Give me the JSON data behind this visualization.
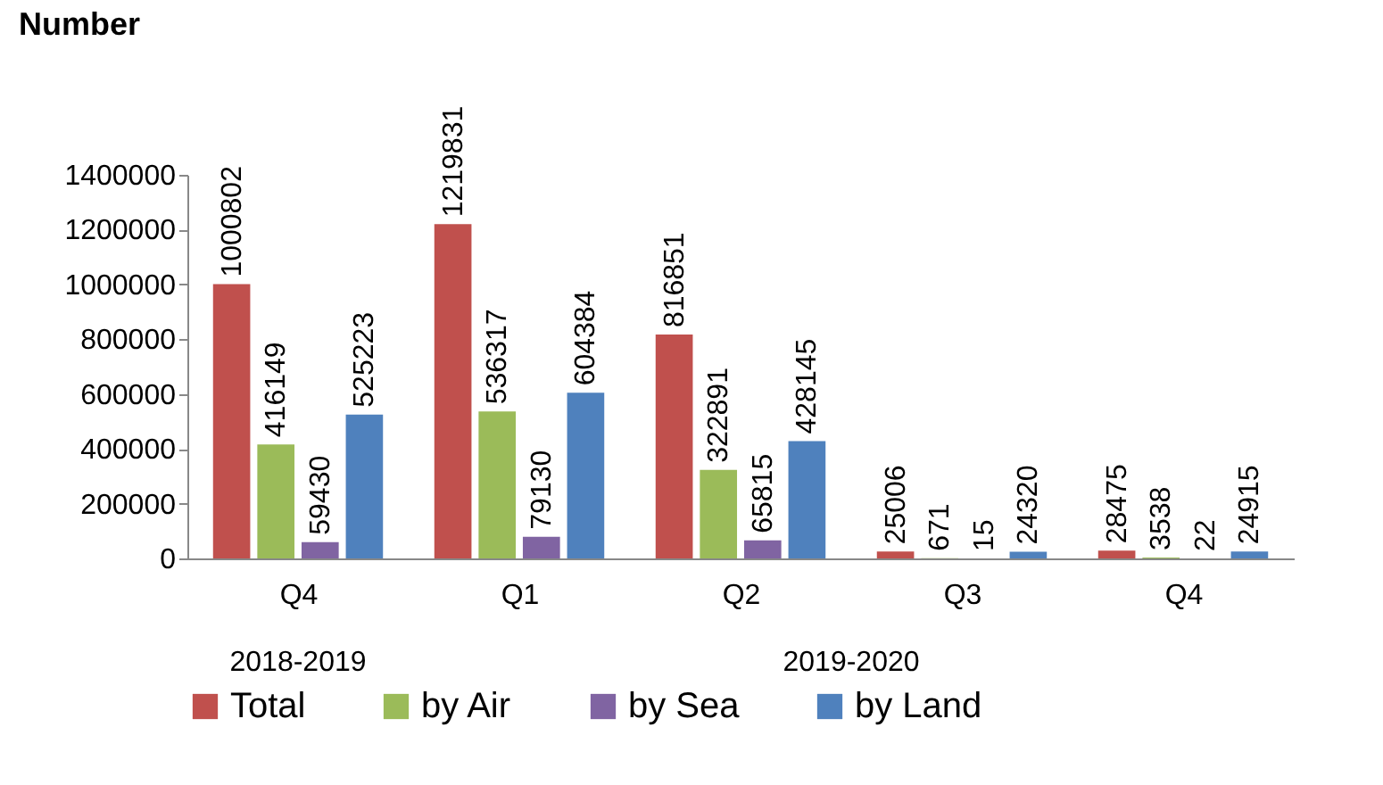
{
  "chart_data": {
    "type": "bar",
    "ylabel": "Number",
    "categories": [
      "Q4",
      "Q1",
      "Q2",
      "Q3",
      "Q4"
    ],
    "series": [
      {
        "name": "Total",
        "color": "#c0504d",
        "values": [
          1000802,
          1219831,
          816851,
          25006,
          28475
        ]
      },
      {
        "name": "by Air",
        "color": "#9bbb59",
        "values": [
          416149,
          536317,
          322891,
          671,
          3538
        ]
      },
      {
        "name": "by Sea",
        "color": "#8064a2",
        "values": [
          59430,
          79130,
          65815,
          15,
          22
        ]
      },
      {
        "name": "by Land",
        "color": "#4f81bd",
        "values": [
          525223,
          604384,
          428145,
          24320,
          24915
        ]
      }
    ],
    "ylim": [
      0,
      1400000
    ],
    "yticks": [
      0,
      200000,
      400000,
      600000,
      800000,
      1000000,
      1200000,
      1400000
    ],
    "data_labels": true,
    "grid": false,
    "legend": "bottom",
    "annotations": [
      "2018-2019",
      "2019-2020"
    ]
  }
}
